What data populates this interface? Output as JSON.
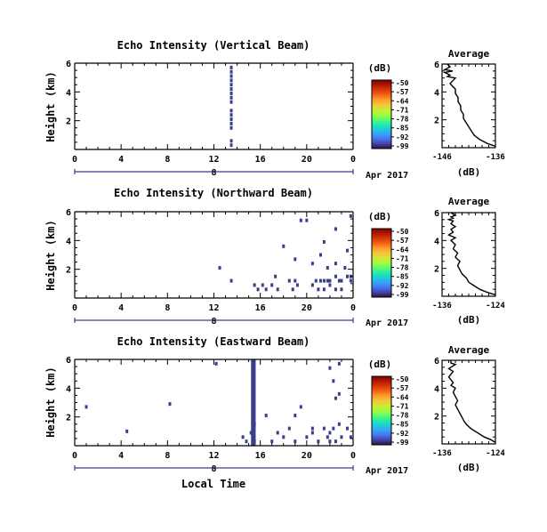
{
  "figure": {
    "xlabel": "Local Time",
    "date_label": "Apr 2017",
    "day_label": "8",
    "avg_title": "Average",
    "avg_xlabel": "(dB)",
    "ylabel": "Height (km)",
    "colorbar_label": "(dB)"
  },
  "colorbar": {
    "ticks": [
      "-50",
      "-57",
      "-64",
      "-71",
      "-78",
      "-85",
      "-92",
      "-99"
    ],
    "colors": [
      "#30123b",
      "#4145ab",
      "#4675ed",
      "#39a2fc",
      "#1bcfd4",
      "#24eca6",
      "#61fc6c",
      "#a4fc3b",
      "#d1e834",
      "#f3c63a",
      "#fe9b2d",
      "#f36315",
      "#d93806",
      "#b11901",
      "#7a0402"
    ]
  },
  "chart_data": [
    {
      "type": "heatmap",
      "title": "Echo Intensity (Vertical Beam)",
      "xlabel": "Local Time",
      "ylabel": "Height (km)",
      "xlim": [
        0,
        24
      ],
      "ylim": [
        0,
        6
      ],
      "xticks": [
        "0",
        "4",
        "8",
        "12",
        "16",
        "20",
        "0"
      ],
      "yticks": [
        "2",
        "4",
        "6"
      ],
      "cells": [
        [
          13.5,
          5.7
        ],
        [
          13.5,
          5.4
        ],
        [
          13.5,
          5.1
        ],
        [
          13.5,
          4.8
        ],
        [
          13.5,
          4.5
        ],
        [
          13.5,
          4.2
        ],
        [
          13.5,
          3.9
        ],
        [
          13.5,
          3.6
        ],
        [
          13.5,
          3.3
        ],
        [
          13.5,
          2.7
        ],
        [
          13.5,
          2.4
        ],
        [
          13.5,
          2.1
        ],
        [
          13.5,
          1.8
        ],
        [
          13.5,
          1.5
        ],
        [
          13.5,
          0.6
        ],
        [
          13.5,
          0.3
        ]
      ]
    },
    {
      "type": "line",
      "title": "Average",
      "xlabel": "(dB)",
      "xlim": [
        -146,
        -136
      ],
      "ylim": [
        0,
        6
      ],
      "xticks": [
        "-146",
        "-136"
      ],
      "yticks": [
        "2",
        "4",
        "6"
      ],
      "x": [
        -136.0,
        -137.5,
        -139.0,
        -140.0,
        -140.5,
        -141.0,
        -141.5,
        -142.0,
        -142.0,
        -142.5,
        -142.5,
        -143.0,
        -143.0,
        -143.5,
        -143.5,
        -144.0,
        -144.5,
        -144.0,
        -143.5,
        -145.0,
        -144.5,
        -145.5,
        -144.0,
        -145.5,
        -145.0,
        -144.5,
        -145.0
      ],
      "y": [
        0.1,
        0.3,
        0.6,
        0.9,
        1.2,
        1.5,
        1.8,
        2.1,
        2.4,
        2.7,
        3.0,
        3.3,
        3.6,
        3.9,
        4.2,
        4.4,
        4.6,
        4.8,
        5.0,
        5.1,
        5.2,
        5.4,
        5.5,
        5.6,
        5.7,
        5.8,
        6.0
      ]
    },
    {
      "type": "heatmap",
      "title": "Echo Intensity (Northward Beam)",
      "xlabel": "Local Time",
      "ylabel": "Height (km)",
      "xlim": [
        0,
        24
      ],
      "ylim": [
        0,
        6
      ],
      "xticks": [
        "0",
        "4",
        "8",
        "12",
        "16",
        "20",
        "0"
      ],
      "yticks": [
        "2",
        "4",
        "6"
      ],
      "cells": [
        [
          12.5,
          2.1
        ],
        [
          13.5,
          1.2
        ],
        [
          15.5,
          0.9
        ],
        [
          15.8,
          0.6
        ],
        [
          16.2,
          0.9
        ],
        [
          16.5,
          0.6
        ],
        [
          17.0,
          0.9
        ],
        [
          17.3,
          1.5
        ],
        [
          17.5,
          0.6
        ],
        [
          18.0,
          3.6
        ],
        [
          18.5,
          1.2
        ],
        [
          18.8,
          0.6
        ],
        [
          19.0,
          2.7
        ],
        [
          19.0,
          1.2
        ],
        [
          19.2,
          0.9
        ],
        [
          19.5,
          5.4
        ],
        [
          20.0,
          5.4
        ],
        [
          20.5,
          2.4
        ],
        [
          20.5,
          0.9
        ],
        [
          20.8,
          1.2
        ],
        [
          21.0,
          0.6
        ],
        [
          21.2,
          1.2
        ],
        [
          21.5,
          1.2
        ],
        [
          21.5,
          0.6
        ],
        [
          21.8,
          2.1
        ],
        [
          21.8,
          1.2
        ],
        [
          22.0,
          1.2
        ],
        [
          22.0,
          0.9
        ],
        [
          22.5,
          2.4
        ],
        [
          22.5,
          1.5
        ],
        [
          22.5,
          0.6
        ],
        [
          22.8,
          1.2
        ],
        [
          23.0,
          1.2
        ],
        [
          23.0,
          0.6
        ],
        [
          23.3,
          2.1
        ],
        [
          23.5,
          1.5
        ],
        [
          23.8,
          1.5
        ],
        [
          23.8,
          1.2
        ],
        [
          23.8,
          5.7
        ],
        [
          22.5,
          4.8
        ],
        [
          21.5,
          3.9
        ],
        [
          21.2,
          3.0
        ],
        [
          23.5,
          3.3
        ]
      ]
    },
    {
      "type": "line",
      "title": "Average",
      "xlabel": "(dB)",
      "xlim": [
        -136,
        -124
      ],
      "ylim": [
        0,
        6
      ],
      "xticks": [
        "-136",
        "-124"
      ],
      "yticks": [
        "2",
        "4",
        "6"
      ],
      "x": [
        -124.0,
        -126.0,
        -127.5,
        -129.0,
        -130.0,
        -130.5,
        -131.5,
        -132.0,
        -132.5,
        -132.0,
        -133.0,
        -132.5,
        -133.5,
        -133.0,
        -134.0,
        -133.0,
        -134.5,
        -133.5,
        -134.0,
        -133.0,
        -134.0,
        -133.5,
        -134.5,
        -133.5,
        -134.0,
        -133.0,
        -134.0
      ],
      "y": [
        0.1,
        0.3,
        0.5,
        0.8,
        1.0,
        1.3,
        1.6,
        1.9,
        2.2,
        2.5,
        2.8,
        3.1,
        3.4,
        3.7,
        4.0,
        4.2,
        4.4,
        4.6,
        4.8,
        5.0,
        5.2,
        5.4,
        5.5,
        5.6,
        5.7,
        5.8,
        6.0
      ]
    },
    {
      "type": "heatmap",
      "title": "Echo Intensity (Eastward Beam)",
      "xlabel": "Local Time",
      "ylabel": "Height (km)",
      "xlim": [
        0,
        24
      ],
      "ylim": [
        0,
        6
      ],
      "xticks": [
        "0",
        "4",
        "8",
        "12",
        "16",
        "20",
        "0"
      ],
      "yticks": [
        "2",
        "4",
        "6"
      ],
      "cells": [
        [
          1.0,
          2.7
        ],
        [
          4.5,
          1.0
        ],
        [
          8.2,
          2.9
        ],
        [
          12.2,
          5.7
        ],
        [
          14.5,
          0.6
        ],
        [
          14.8,
          0.3
        ],
        [
          15.2,
          0.9
        ],
        [
          15.5,
          1.5
        ],
        [
          15.5,
          0.3
        ],
        [
          16.5,
          2.1
        ],
        [
          17.0,
          0.3
        ],
        [
          17.5,
          0.9
        ],
        [
          18.0,
          0.6
        ],
        [
          18.5,
          1.2
        ],
        [
          19.0,
          0.3
        ],
        [
          19.0,
          2.1
        ],
        [
          19.5,
          2.7
        ],
        [
          20.0,
          0.6
        ],
        [
          20.5,
          1.2
        ],
        [
          20.5,
          0.9
        ],
        [
          21.0,
          0.3
        ],
        [
          21.5,
          1.2
        ],
        [
          21.8,
          0.6
        ],
        [
          22.0,
          0.9
        ],
        [
          22.0,
          0.3
        ],
        [
          22.3,
          1.2
        ],
        [
          22.5,
          0.3
        ],
        [
          22.8,
          1.5
        ],
        [
          23.0,
          0.6
        ],
        [
          23.5,
          1.2
        ],
        [
          23.8,
          0.6
        ],
        [
          22.0,
          5.4
        ],
        [
          22.8,
          3.6
        ],
        [
          22.5,
          3.3
        ],
        [
          22.3,
          4.5
        ],
        [
          22.8,
          5.7
        ]
      ],
      "band": {
        "x": [
          15.2,
          15.6
        ],
        "y": [
          0,
          6
        ]
      }
    },
    {
      "type": "line",
      "title": "Average",
      "xlabel": "(dB)",
      "xlim": [
        -136,
        -124
      ],
      "ylim": [
        0,
        6
      ],
      "xticks": [
        "-136",
        "-124"
      ],
      "yticks": [
        "2",
        "4",
        "6"
      ],
      "x": [
        -124.0,
        -125.0,
        -126.5,
        -128.0,
        -129.5,
        -130.5,
        -131.0,
        -131.5,
        -132.0,
        -132.5,
        -133.0,
        -132.5,
        -133.0,
        -133.5,
        -133.0,
        -134.0,
        -133.5,
        -134.0,
        -134.5,
        -134.0,
        -133.5,
        -134.5,
        -134.0,
        -133.0,
        -134.0,
        -134.0
      ],
      "y": [
        0.1,
        0.3,
        0.5,
        0.8,
        1.1,
        1.4,
        1.6,
        1.9,
        2.2,
        2.5,
        2.8,
        3.1,
        3.4,
        3.7,
        4.0,
        4.2,
        4.4,
        4.6,
        4.8,
        5.0,
        5.2,
        5.4,
        5.5,
        5.7,
        5.8,
        6.0
      ]
    }
  ]
}
